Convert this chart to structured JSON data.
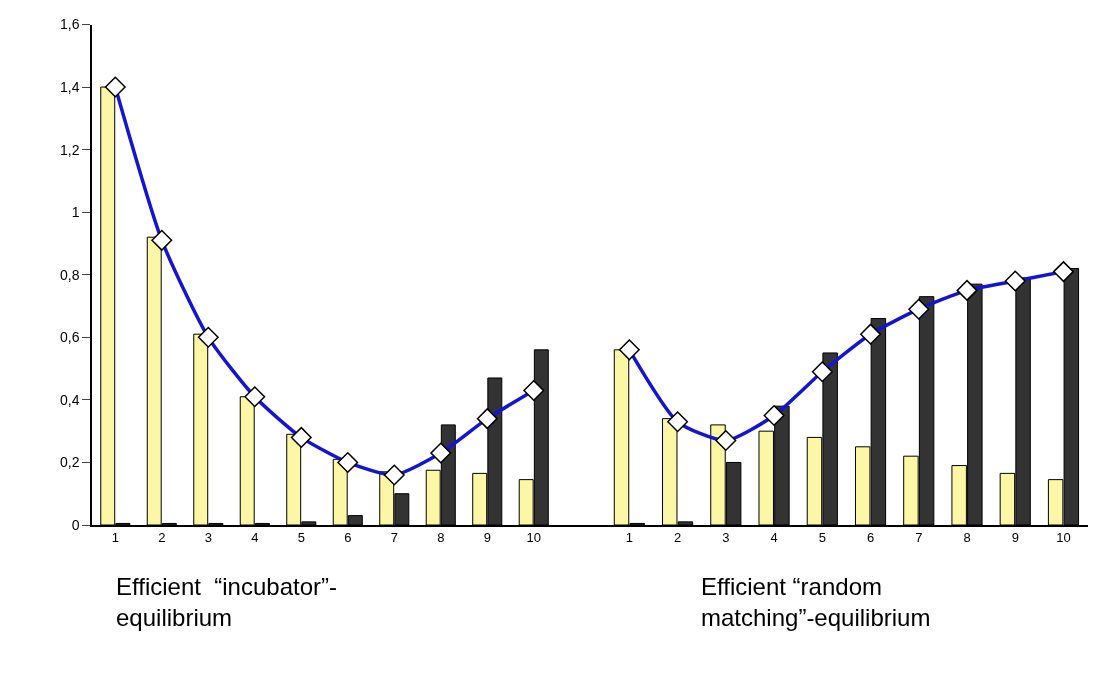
{
  "chart_data": [
    {
      "type": "bar",
      "xlabel": "Efficient  “incubator”-\nequilibrium",
      "categories": [
        "1",
        "2",
        "3",
        "4",
        "5",
        "6",
        "7",
        "8",
        "9",
        "10"
      ],
      "series": [
        {
          "color": "#fcf7a4",
          "values": [
            1.4,
            0.92,
            0.61,
            0.41,
            0.29,
            0.21,
            0.17,
            0.175,
            0.165,
            0.145
          ]
        },
        {
          "color": "#333333",
          "values": [
            0.005,
            0.005,
            0.005,
            0.005,
            0.01,
            0.03,
            0.1,
            0.32,
            0.47,
            0.56
          ]
        },
        {
          "type": "line",
          "color": "#1414d2",
          "marker": "diamond",
          "values": [
            1.4,
            0.91,
            0.6,
            0.41,
            0.28,
            0.2,
            0.16,
            0.23,
            0.34,
            0.43
          ]
        }
      ],
      "ylim": [
        0,
        1.6
      ],
      "yticks": [
        0,
        {
          "value": 0.2,
          "label": "0,2"
        },
        {
          "value": 0.4,
          "label": "0,4"
        },
        {
          "value": 0.6,
          "label": "0,6"
        },
        {
          "value": 0.8,
          "label": "0,8"
        },
        1,
        {
          "value": 1.2,
          "label": "1,2"
        },
        {
          "value": 1.4,
          "label": "1,4"
        },
        {
          "value": 1.6,
          "label": "1,6"
        }
      ]
    },
    {
      "type": "bar",
      "xlabel": "Efficient “random\nmatching”-equilibrium",
      "categories": [
        "1",
        "2",
        "3",
        "4",
        "5",
        "6",
        "7",
        "8",
        "9",
        "10"
      ],
      "series": [
        {
          "color": "#fcf7a4",
          "values": [
            0.56,
            0.34,
            0.32,
            0.3,
            0.28,
            0.25,
            0.22,
            0.19,
            0.165,
            0.145
          ]
        },
        {
          "color": "#333333",
          "values": [
            0.005,
            0.01,
            0.2,
            0.38,
            0.55,
            0.66,
            0.73,
            0.77,
            0.79,
            0.82
          ]
        },
        {
          "type": "line",
          "color": "#1414d2",
          "marker": "diamond",
          "values": [
            0.56,
            0.33,
            0.27,
            0.35,
            0.49,
            0.61,
            0.69,
            0.75,
            0.78,
            0.81
          ]
        }
      ],
      "ylim": [
        0,
        1.6
      ],
      "tick_labels": "x"
    }
  ]
}
